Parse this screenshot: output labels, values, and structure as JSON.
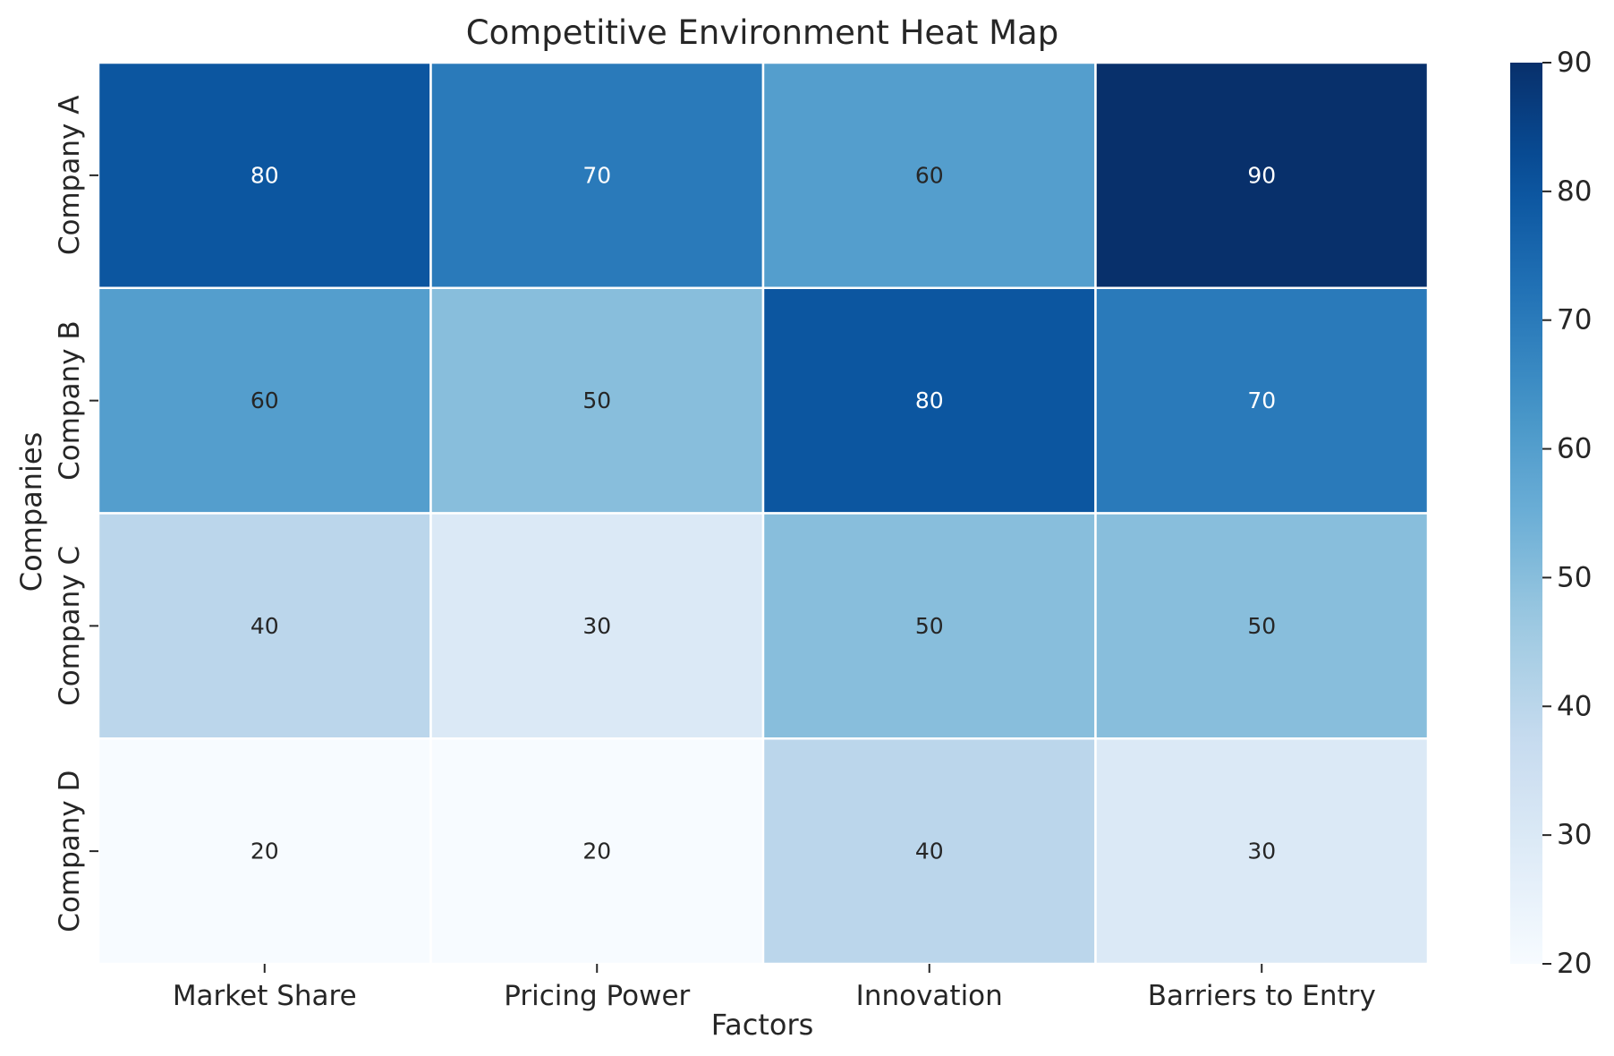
{
  "chart_data": {
    "type": "heatmap",
    "title": "Competitive Environment Heat Map",
    "xlabel": "Factors",
    "ylabel": "Companies",
    "x_categories": [
      "Market Share",
      "Pricing Power",
      "Innovation",
      "Barriers to Entry"
    ],
    "y_categories": [
      "Company A",
      "Company B",
      "Company C",
      "Company D"
    ],
    "values": [
      [
        80,
        70,
        60,
        90
      ],
      [
        60,
        50,
        80,
        70
      ],
      [
        40,
        30,
        50,
        50
      ],
      [
        20,
        20,
        40,
        30
      ]
    ],
    "colormap": "Blues",
    "color_range": [
      20,
      90
    ],
    "colorbar_ticks": [
      20,
      30,
      40,
      50,
      60,
      70,
      80,
      90
    ],
    "cell_labels_shown": true,
    "grid": false
  }
}
